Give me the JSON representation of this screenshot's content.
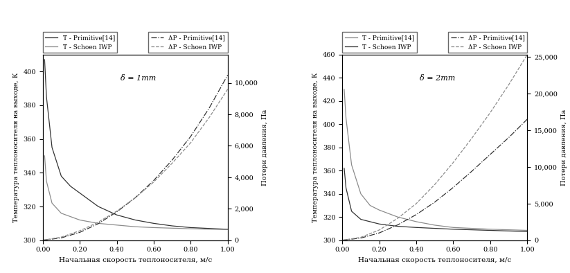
{
  "chart_data": [
    {
      "type": "line",
      "annotation": "δ = 1mm",
      "x_label": "Начальная скорость теплоносителя, м/с",
      "y_label": "Температура теплоносителя на выходе, К",
      "y2_label": "Потери давления, Па",
      "xlim": [
        0,
        1
      ],
      "xticks": [
        {
          "value": 0,
          "label": "0.00"
        },
        {
          "value": 0.2,
          "label": "0.20"
        },
        {
          "value": 0.4,
          "label": "0.40"
        },
        {
          "value": 0.6,
          "label": "0.60"
        },
        {
          "value": 0.8,
          "label": "0.80"
        },
        {
          "value": 1,
          "label": "1.00"
        }
      ],
      "ylim": [
        300,
        410
      ],
      "yticks": [
        300,
        320,
        340,
        360,
        380,
        400
      ],
      "y2lim": [
        0,
        11800
      ],
      "y2ticks": [
        0,
        {
          "value": 2000,
          "label": "2,000"
        },
        {
          "value": 4000,
          "label": "4,000"
        },
        {
          "value": 6000,
          "label": "6,000"
        },
        {
          "value": 8000,
          "label": "8,000"
        },
        {
          "value": 10000,
          "label": "10,000"
        }
      ],
      "series": [
        {
          "name": "T - Primitive[14]",
          "color": "#333333",
          "line_style": "solid",
          "x": [
            0.01,
            0.02,
            0.05,
            0.1,
            0.15,
            0.2,
            0.3,
            0.4,
            0.5,
            0.6,
            0.7,
            0.8,
            0.9,
            1.0
          ],
          "values": [
            407,
            385,
            355,
            338,
            332,
            328,
            320,
            315,
            312,
            310,
            308.5,
            307.5,
            307,
            306.5
          ]
        },
        {
          "name": "T - Schoen IWP",
          "color": "#8c8c8c",
          "line_style": "solid",
          "x": [
            0.01,
            0.02,
            0.05,
            0.1,
            0.2,
            0.3,
            0.4,
            0.5,
            0.6,
            0.8,
            1.0
          ],
          "values": [
            350,
            335,
            322,
            316,
            312,
            310,
            309,
            308,
            307.5,
            306.8,
            306.3
          ]
        },
        {
          "name": "ΔP - Primitive[14]",
          "color": "#333333",
          "line_style": "dashdot",
          "axis": "y2",
          "x": [
            0,
            0.1,
            0.2,
            0.3,
            0.4,
            0.5,
            0.6,
            0.7,
            0.8,
            0.9,
            1.0
          ],
          "values": [
            0,
            150,
            500,
            1050,
            1800,
            2700,
            3800,
            5100,
            6600,
            8400,
            10500
          ]
        },
        {
          "name": "ΔP - Schoen IWP",
          "color": "#8c8c8c",
          "line_style": "dashed",
          "axis": "y2",
          "x": [
            0,
            0.1,
            0.2,
            0.3,
            0.4,
            0.5,
            0.6,
            0.7,
            0.8,
            0.9,
            1.0
          ],
          "values": [
            0,
            200,
            600,
            1150,
            1850,
            2700,
            3700,
            4900,
            6200,
            7800,
            9600
          ]
        }
      ]
    },
    {
      "type": "line",
      "annotation": "δ = 2mm",
      "x_label": "Начальная скорость теплоносителя, м/с",
      "y_label": "Температура теплоносителя на выходе, К",
      "y2_label": "Потери давления, Па",
      "xlim": [
        0,
        1
      ],
      "xticks": [
        {
          "value": 0,
          "label": "0.00"
        },
        {
          "value": 0.2,
          "label": "0.20"
        },
        {
          "value": 0.4,
          "label": "0.40"
        },
        {
          "value": 0.6,
          "label": "0.60"
        },
        {
          "value": 0.8,
          "label": "0.80"
        },
        {
          "value": 1,
          "label": "1.00"
        }
      ],
      "ylim": [
        300,
        460
      ],
      "yticks": [
        300,
        320,
        340,
        360,
        380,
        400,
        420,
        440,
        460
      ],
      "y2lim": [
        0,
        25300
      ],
      "y2ticks": [
        0,
        {
          "value": 5000,
          "label": "5,000"
        },
        {
          "value": 10000,
          "label": "10,000"
        },
        {
          "value": 15000,
          "label": "15,000"
        },
        {
          "value": 20000,
          "label": "20,000"
        },
        {
          "value": 25000,
          "label": "25,000"
        }
      ],
      "series": [
        {
          "name": "T - Primitive[14]",
          "color": "#8c8c8c",
          "line_style": "solid",
          "x": [
            0.01,
            0.02,
            0.05,
            0.1,
            0.15,
            0.2,
            0.3,
            0.4,
            0.5,
            0.6,
            0.8,
            1.0
          ],
          "values": [
            430,
            405,
            365,
            340,
            330,
            326,
            320,
            316,
            313,
            311,
            309.5,
            308.5
          ]
        },
        {
          "name": "T - Schoen IWP",
          "color": "#333333",
          "line_style": "solid",
          "x": [
            0.01,
            0.02,
            0.05,
            0.1,
            0.2,
            0.3,
            0.4,
            0.6,
            0.8,
            1.0
          ],
          "values": [
            362,
            345,
            325,
            318,
            314,
            312,
            311,
            309.5,
            308.5,
            307.5
          ]
        },
        {
          "name": "ΔP - Primitive[14]",
          "color": "#333333",
          "line_style": "dashdot",
          "axis": "y2",
          "x": [
            0,
            0.1,
            0.2,
            0.3,
            0.4,
            0.5,
            0.6,
            0.7,
            0.8,
            0.9,
            1.0
          ],
          "values": [
            0,
            300,
            1000,
            2100,
            3500,
            5200,
            7200,
            9400,
            11700,
            14000,
            16500
          ]
        },
        {
          "name": "ΔP - Schoen IWP",
          "color": "#8c8c8c",
          "line_style": "dashed",
          "axis": "y2",
          "x": [
            0,
            0.1,
            0.2,
            0.3,
            0.4,
            0.5,
            0.6,
            0.7,
            0.8,
            0.9,
            1.0
          ],
          "values": [
            0,
            400,
            1400,
            3000,
            5000,
            7600,
            10600,
            13900,
            17400,
            21200,
            25300
          ]
        }
      ]
    }
  ]
}
